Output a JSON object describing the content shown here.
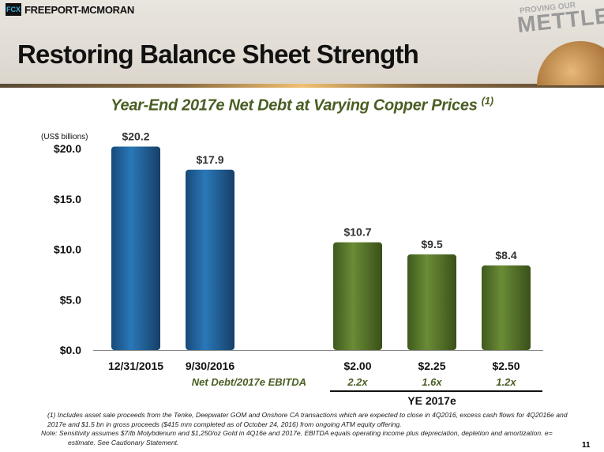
{
  "header": {
    "logo_mark": "FCX",
    "company": "FREEPORT-MCMORAN",
    "title": "Restoring Balance Sheet Strength",
    "tagline_small": "PROVING OUR",
    "tagline": "METTLE"
  },
  "chart_data": {
    "type": "bar",
    "title": "Year-End 2017e Net Debt at Varying Copper Prices",
    "title_footnote": "(1)",
    "ylabel": "(US$ billions)",
    "ylim": [
      0,
      20
    ],
    "yticks": [
      "$0.0",
      "$5.0",
      "$10.0",
      "$15.0",
      "$20.0"
    ],
    "ytick_values": [
      0,
      5,
      10,
      15,
      20
    ],
    "categories": [
      "12/31/2015",
      "9/30/2016",
      "$2.00",
      "$2.25",
      "$2.50"
    ],
    "values": [
      20.2,
      17.9,
      10.7,
      9.5,
      8.4
    ],
    "labels": [
      "$20.2",
      "$17.9",
      "$10.7",
      "$9.5",
      "$8.4"
    ],
    "colors": [
      "#1f5f9a",
      "#1f5f9a",
      "#5a7a2c",
      "#5a7a2c",
      "#5a7a2c"
    ],
    "ratio_label": "Net Debt/2017e EBITDA",
    "ratios": [
      "2.2x",
      "1.6x",
      "1.2x"
    ],
    "group_label": "YE 2017e"
  },
  "footnotes": [
    "(1) Includes asset sale proceeds from the Tenke, Deepwater GOM and Onshore CA transactions which are expected to close in 4Q2016, excess cash flows for 4Q2016e and 2017e and $1.5 bn in gross proceeds ($415 mm completed as of October 24, 2016) from ongoing ATM equity offering.",
    "Note: Sensitivity assumes $7/lb Molybdenum and $1,250/oz Gold in 4Q16e and 2017e. EBITDA equals operating income plus depreciation, depletion and amortization.  e= estimate. See Cautionary Statement."
  ],
  "page_number": "11"
}
